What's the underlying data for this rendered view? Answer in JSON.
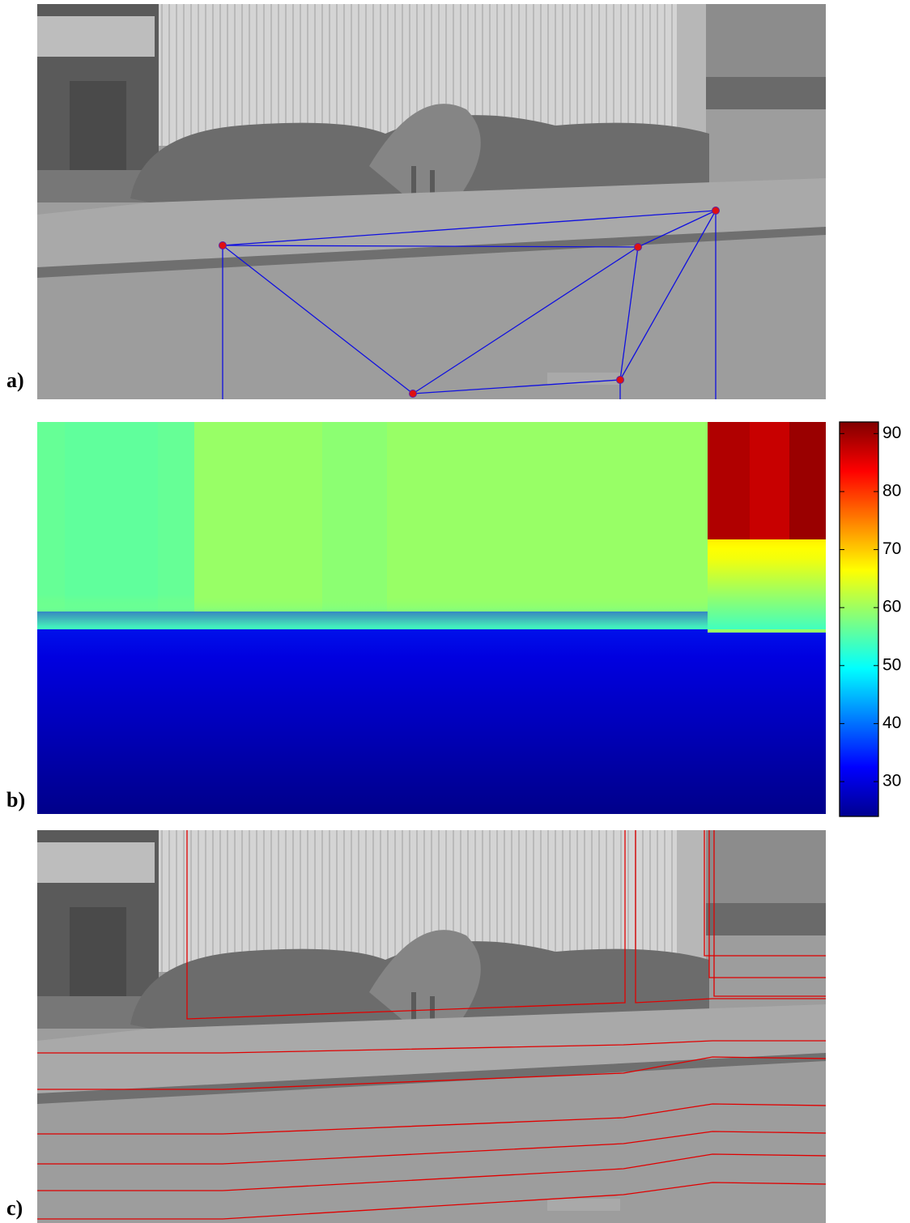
{
  "panels": [
    {
      "label": "a)"
    },
    {
      "label": "b)"
    },
    {
      "label": "c)"
    }
  ],
  "colorbar": {
    "lim": [
      24,
      92
    ],
    "ticks": [
      30,
      40,
      50,
      60,
      70,
      80,
      90
    ]
  }
}
